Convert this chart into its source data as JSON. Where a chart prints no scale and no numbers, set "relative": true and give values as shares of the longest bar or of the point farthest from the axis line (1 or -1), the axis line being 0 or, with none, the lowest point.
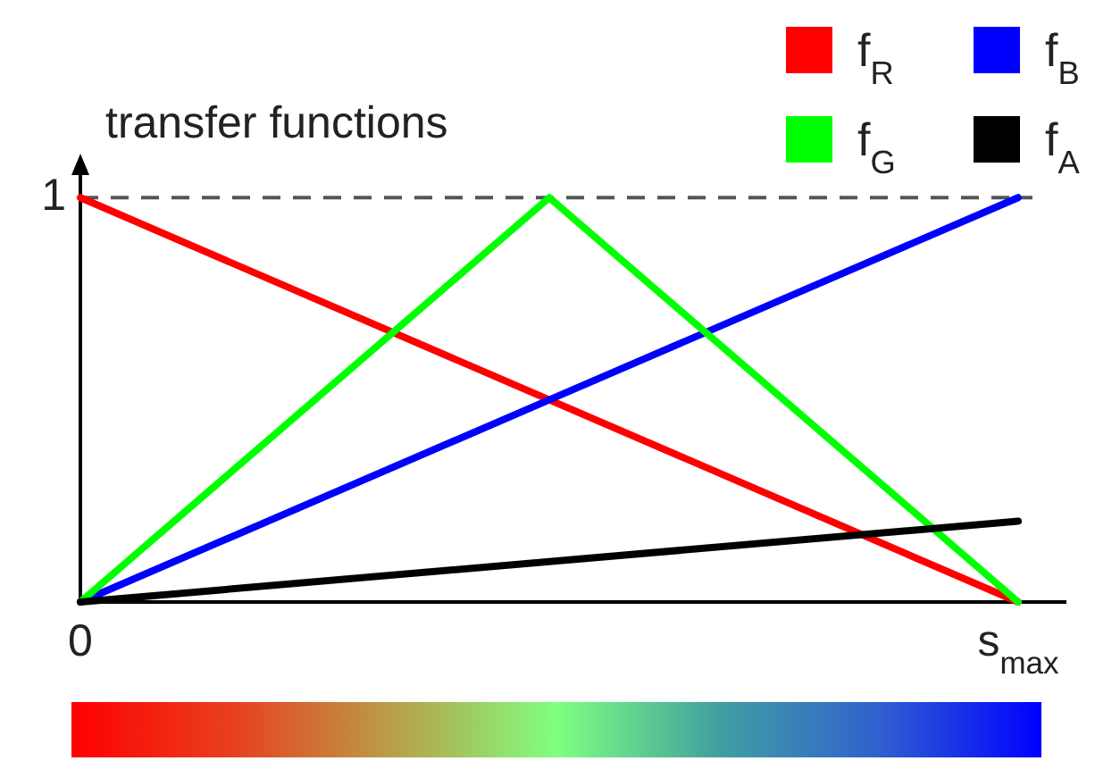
{
  "chart_data": {
    "type": "line",
    "ylabel": "transfer functions",
    "categories": [
      "0",
      null,
      "s$_{max}$"
    ],
    "relative": true,
    "legend": "top right",
    "marker": "none",
    "line_style": "solid",
    "ref_lines": [
      {
        "axis": "y",
        "value": 1,
        "label": "1",
        "color": "#555555",
        "line_style": "dashed"
      }
    ],
    "series": [
      {
        "name": "f$_{R}$",
        "color": "#ff0000",
        "values": [
          1,
          0.5,
          0
        ]
      },
      {
        "name": "f$_{B}$",
        "color": "#0000ff",
        "values": [
          0,
          0.5,
          1
        ]
      },
      {
        "name": "f$_{G}$",
        "color": "#00ff00",
        "values": [
          0,
          1,
          0
        ]
      },
      {
        "name": "f$_{A}$",
        "color": "#000000",
        "values": [
          0,
          0.1,
          0.2
        ]
      }
    ]
  }
}
